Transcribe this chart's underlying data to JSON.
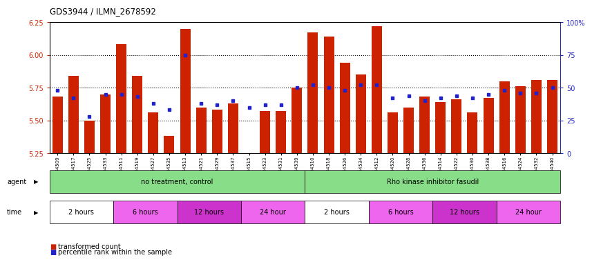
{
  "title": "GDS3944 / ILMN_2678592",
  "samples": [
    "GSM634509",
    "GSM634517",
    "GSM634525",
    "GSM634533",
    "GSM634511",
    "GSM634519",
    "GSM634527",
    "GSM634535",
    "GSM634513",
    "GSM634521",
    "GSM634529",
    "GSM634537",
    "GSM634515",
    "GSM634523",
    "GSM634531",
    "GSM634539",
    "GSM634510",
    "GSM634518",
    "GSM634526",
    "GSM634534",
    "GSM634512",
    "GSM634520",
    "GSM634528",
    "GSM634536",
    "GSM634514",
    "GSM634522",
    "GSM634530",
    "GSM634538",
    "GSM634516",
    "GSM634524",
    "GSM634532",
    "GSM634540"
  ],
  "bar_values": [
    5.68,
    5.84,
    5.5,
    5.7,
    6.08,
    5.84,
    5.56,
    5.38,
    6.2,
    5.6,
    5.58,
    5.63,
    5.25,
    5.57,
    5.57,
    5.75,
    6.17,
    6.14,
    5.94,
    5.85,
    6.22,
    5.56,
    5.6,
    5.68,
    5.64,
    5.66,
    5.56,
    5.67,
    5.8,
    5.76,
    5.81,
    5.81
  ],
  "percentile_values": [
    48,
    42,
    28,
    45,
    45,
    43,
    38,
    33,
    75,
    38,
    37,
    40,
    35,
    37,
    37,
    50,
    52,
    50,
    48,
    52,
    52,
    42,
    44,
    40,
    42,
    44,
    42,
    45,
    48,
    46,
    46,
    50
  ],
  "ymin": 5.25,
  "ymax": 6.25,
  "yticks": [
    5.25,
    5.5,
    5.75,
    6.0,
    6.25
  ],
  "right_yticks": [
    0,
    25,
    50,
    75,
    100
  ],
  "right_yticklabels": [
    "0",
    "25",
    "50",
    "75",
    "100%"
  ],
  "bar_color": "#CC2200",
  "percentile_color": "#2222CC",
  "agent_groups": [
    {
      "label": "no treatment, control",
      "start": 0,
      "end": 16,
      "color": "#88DD88"
    },
    {
      "label": "Rho kinase inhibitor fasudil",
      "start": 16,
      "end": 32,
      "color": "#88DD88"
    }
  ],
  "time_groups": [
    {
      "label": "2 hours",
      "start": 0,
      "end": 4,
      "color": "#FFFFFF"
    },
    {
      "label": "6 hours",
      "start": 4,
      "end": 8,
      "color": "#EE66EE"
    },
    {
      "label": "12 hours",
      "start": 8,
      "end": 12,
      "color": "#CC33CC"
    },
    {
      "label": "24 hour",
      "start": 12,
      "end": 16,
      "color": "#EE66EE"
    },
    {
      "label": "2 hours",
      "start": 16,
      "end": 20,
      "color": "#FFFFFF"
    },
    {
      "label": "6 hours",
      "start": 20,
      "end": 24,
      "color": "#EE66EE"
    },
    {
      "label": "12 hours",
      "start": 24,
      "end": 28,
      "color": "#CC33CC"
    },
    {
      "label": "24 hour",
      "start": 28,
      "end": 32,
      "color": "#EE66EE"
    }
  ],
  "axis_label_color_left": "#CC2200",
  "axis_label_color_right": "#2222CC",
  "plot_bg_color": "#FFFFFF"
}
